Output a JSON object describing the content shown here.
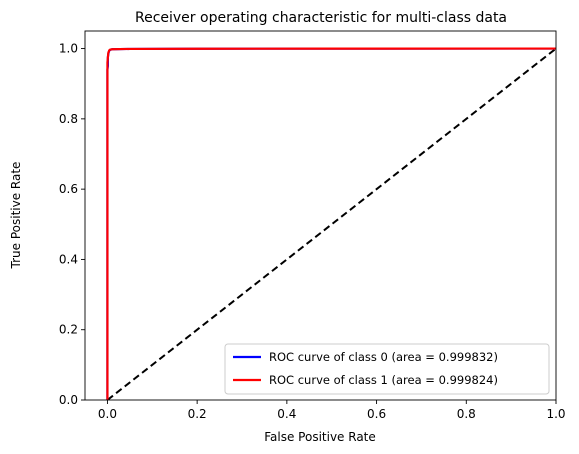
{
  "chart_data": {
    "type": "line",
    "title": "Receiver operating characteristic for multi-class data",
    "xlabel": "False Positive Rate",
    "ylabel": "True Positive Rate",
    "xlim": [
      -0.05,
      1.0
    ],
    "ylim": [
      0.0,
      1.05
    ],
    "xticks": [
      "0.0",
      "0.2",
      "0.4",
      "0.6",
      "0.8",
      "1.0"
    ],
    "yticks": [
      "0.0",
      "0.2",
      "0.4",
      "0.6",
      "0.8",
      "1.0"
    ],
    "grid": false,
    "legend_position": "lower-right",
    "series": [
      {
        "name": "ROC curve of class 0 (area = 0.999832)",
        "color": "#0000ff",
        "x": [
          0.0,
          0.0,
          0.001,
          0.001,
          0.002,
          0.003,
          0.004,
          0.006,
          0.01,
          0.05,
          0.2,
          0.5,
          1.0
        ],
        "y": [
          0.0,
          0.94,
          0.95,
          0.975,
          0.985,
          0.99,
          0.994,
          0.996,
          0.998,
          0.999,
          0.9995,
          0.9998,
          1.0
        ]
      },
      {
        "name": "ROC curve of class 1 (area = 0.999824)",
        "color": "#ff0000",
        "x": [
          0.0,
          0.0,
          0.001,
          0.002,
          0.004,
          0.006,
          0.01,
          0.05,
          0.2,
          0.5,
          1.0
        ],
        "y": [
          0.0,
          0.96,
          0.975,
          0.988,
          0.995,
          0.997,
          0.998,
          0.999,
          0.9995,
          0.9998,
          1.0
        ]
      },
      {
        "name": "",
        "color": "#000000",
        "dashed": true,
        "x": [
          0.0,
          1.0
        ],
        "y": [
          0.0,
          1.0
        ]
      }
    ]
  }
}
